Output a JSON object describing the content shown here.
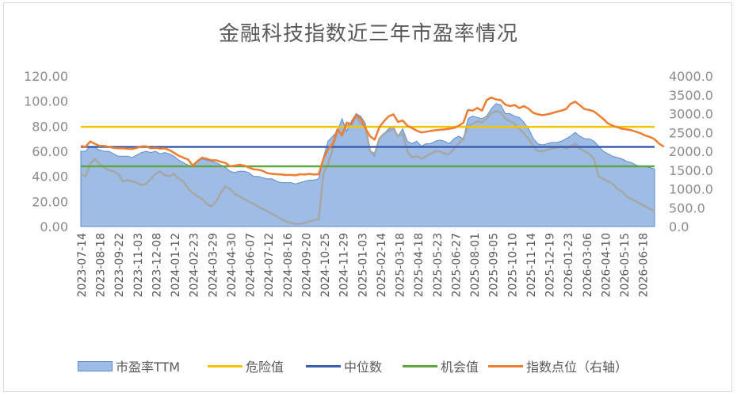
{
  "chart_data": {
    "type": "area",
    "title": "金融科技指数近三年市盈率情况",
    "y_left": {
      "ylim": [
        0,
        120
      ],
      "ticks": [
        "0.00",
        "20.00",
        "40.00",
        "60.00",
        "80.00",
        "100.00",
        "120.00"
      ]
    },
    "y_right": {
      "ylim": [
        0,
        4000
      ],
      "ticks": [
        "0.0",
        "500.0",
        "1000.0",
        "1500.0",
        "2000.0",
        "2500.0",
        "3000.0",
        "3500.0",
        "4000.0"
      ]
    },
    "x_tick_labels": [
      "2023-07-14",
      "2023-08-18",
      "2023-09-22",
      "2023-11-03",
      "2023-12-08",
      "2024-01-12",
      "2024-02-23",
      "2024-03-29",
      "2024-04-30",
      "2024-06-07",
      "2024-07-12",
      "2024-08-16",
      "2024-09-20",
      "2024-10-25",
      "2024-11-29",
      "2025-01-03",
      "2025-02-14",
      "2025-03-18",
      "2025-04-18",
      "2025-05-23",
      "2025-06-27",
      "2025-08-01",
      "2025-09-05",
      "2025-10-10",
      "2025-11-14",
      "2025-12-19",
      "2026-01-23",
      "2026-03-06",
      "2026-04-10",
      "2026-05-15",
      "2026-06-18"
    ],
    "reference_lines": {
      "danger": 79.5,
      "median": 63.5,
      "opportunity": 48.0
    },
    "series": [
      {
        "name": "市盈率TTM",
        "axis": "left",
        "color": "#5b8cd0",
        "values": [
          60,
          60,
          64,
          63,
          61,
          60,
          60,
          58,
          56,
          56,
          56,
          55,
          57,
          59,
          60,
          59,
          60,
          58,
          59,
          58,
          56,
          53,
          51,
          49,
          48,
          52,
          54,
          53,
          52,
          51,
          49,
          47,
          44,
          43,
          44,
          44,
          43,
          40,
          40,
          39,
          38,
          38,
          36,
          35,
          35,
          35,
          34,
          35,
          36,
          37,
          37,
          38,
          55,
          68,
          72,
          76,
          86,
          76,
          84,
          90,
          88,
          82,
          60,
          56,
          70,
          74,
          78,
          80,
          72,
          78,
          68,
          66,
          68,
          64,
          66,
          66,
          68,
          69,
          68,
          66,
          70,
          72,
          70,
          86,
          88,
          87,
          86,
          88,
          94,
          98,
          97,
          90,
          90,
          88,
          87,
          83,
          78,
          70,
          66,
          65,
          66,
          67,
          67,
          68,
          70,
          72,
          75,
          72,
          70,
          70,
          68,
          64,
          60,
          58,
          56,
          55,
          54,
          52,
          51,
          49,
          48,
          48,
          47,
          46
        ]
      },
      {
        "name": "危险值",
        "axis": "left",
        "color": "#f5c400",
        "constant": 79.5
      },
      {
        "name": "中位数",
        "axis": "left",
        "color": "#3a5fb0",
        "constant": 63.5
      },
      {
        "name": "机会值",
        "axis": "left",
        "color": "#5da845",
        "constant": 48.0
      },
      {
        "name": "指数点位（右轴）",
        "axis": "right",
        "color": "#ed7d31",
        "values": [
          2140,
          2120,
          2260,
          2200,
          2140,
          2140,
          2120,
          2090,
          2080,
          2080,
          2070,
          2060,
          2090,
          2130,
          2130,
          2080,
          2090,
          2070,
          2080,
          2030,
          1960,
          1880,
          1830,
          1780,
          1620,
          1740,
          1830,
          1800,
          1760,
          1760,
          1720,
          1690,
          1600,
          1620,
          1640,
          1620,
          1570,
          1520,
          1510,
          1480,
          1420,
          1400,
          1390,
          1380,
          1370,
          1370,
          1360,
          1390,
          1380,
          1400,
          1380,
          1390,
          1800,
          2050,
          2200,
          2580,
          2420,
          2760,
          2720,
          2960,
          2870,
          2610,
          2400,
          2310,
          2640,
          2800,
          2930,
          2980,
          2780,
          2820,
          2680,
          2620,
          2550,
          2500,
          2520,
          2540,
          2560,
          2570,
          2580,
          2600,
          2620,
          2680,
          2760,
          3100,
          3080,
          3150,
          3080,
          3360,
          3430,
          3380,
          3360,
          3240,
          3200,
          3230,
          3150,
          3200,
          3130,
          3020,
          2980,
          2960,
          2980,
          3010,
          3050,
          3080,
          3120,
          3260,
          3320,
          3220,
          3120,
          3100,
          3060,
          2960,
          2860,
          2740,
          2680,
          2640,
          2600,
          2580,
          2560,
          2520,
          2480,
          2420,
          2380,
          2320,
          2200,
          2120
        ]
      },
      {
        "name": "price_gray",
        "axis": "left",
        "color": "#a6a6a6",
        "values": [
          42,
          40,
          50,
          54,
          50,
          47,
          45,
          44,
          42,
          36,
          37,
          36,
          35,
          33,
          34,
          38,
          42,
          44,
          41,
          40,
          42,
          38,
          36,
          30,
          27,
          24,
          22,
          18,
          16,
          20,
          27,
          32,
          30,
          26,
          24,
          22,
          20,
          18,
          16,
          14,
          12,
          10,
          8,
          6,
          4,
          3,
          2,
          2,
          3,
          4,
          5,
          6,
          42,
          50,
          62,
          76,
          74,
          80,
          82,
          88,
          82,
          80,
          60,
          58,
          70,
          74,
          76,
          78,
          72,
          74,
          60,
          55,
          56,
          54,
          56,
          58,
          60,
          60,
          58,
          58,
          62,
          66,
          70,
          80,
          82,
          84,
          83,
          86,
          90,
          92,
          91,
          86,
          84,
          82,
          78,
          74,
          70,
          64,
          60,
          60,
          61,
          62,
          63,
          64,
          62,
          64,
          66,
          62,
          60,
          58,
          54,
          40,
          38,
          36,
          34,
          30,
          28,
          24,
          22,
          20,
          18,
          16,
          14,
          12
        ]
      }
    ]
  },
  "legend": {
    "items": [
      {
        "label": "市盈率TTM"
      },
      {
        "label": "危险值"
      },
      {
        "label": "中位数"
      },
      {
        "label": "机会值"
      },
      {
        "label": "指数点位（右轴）"
      }
    ]
  }
}
